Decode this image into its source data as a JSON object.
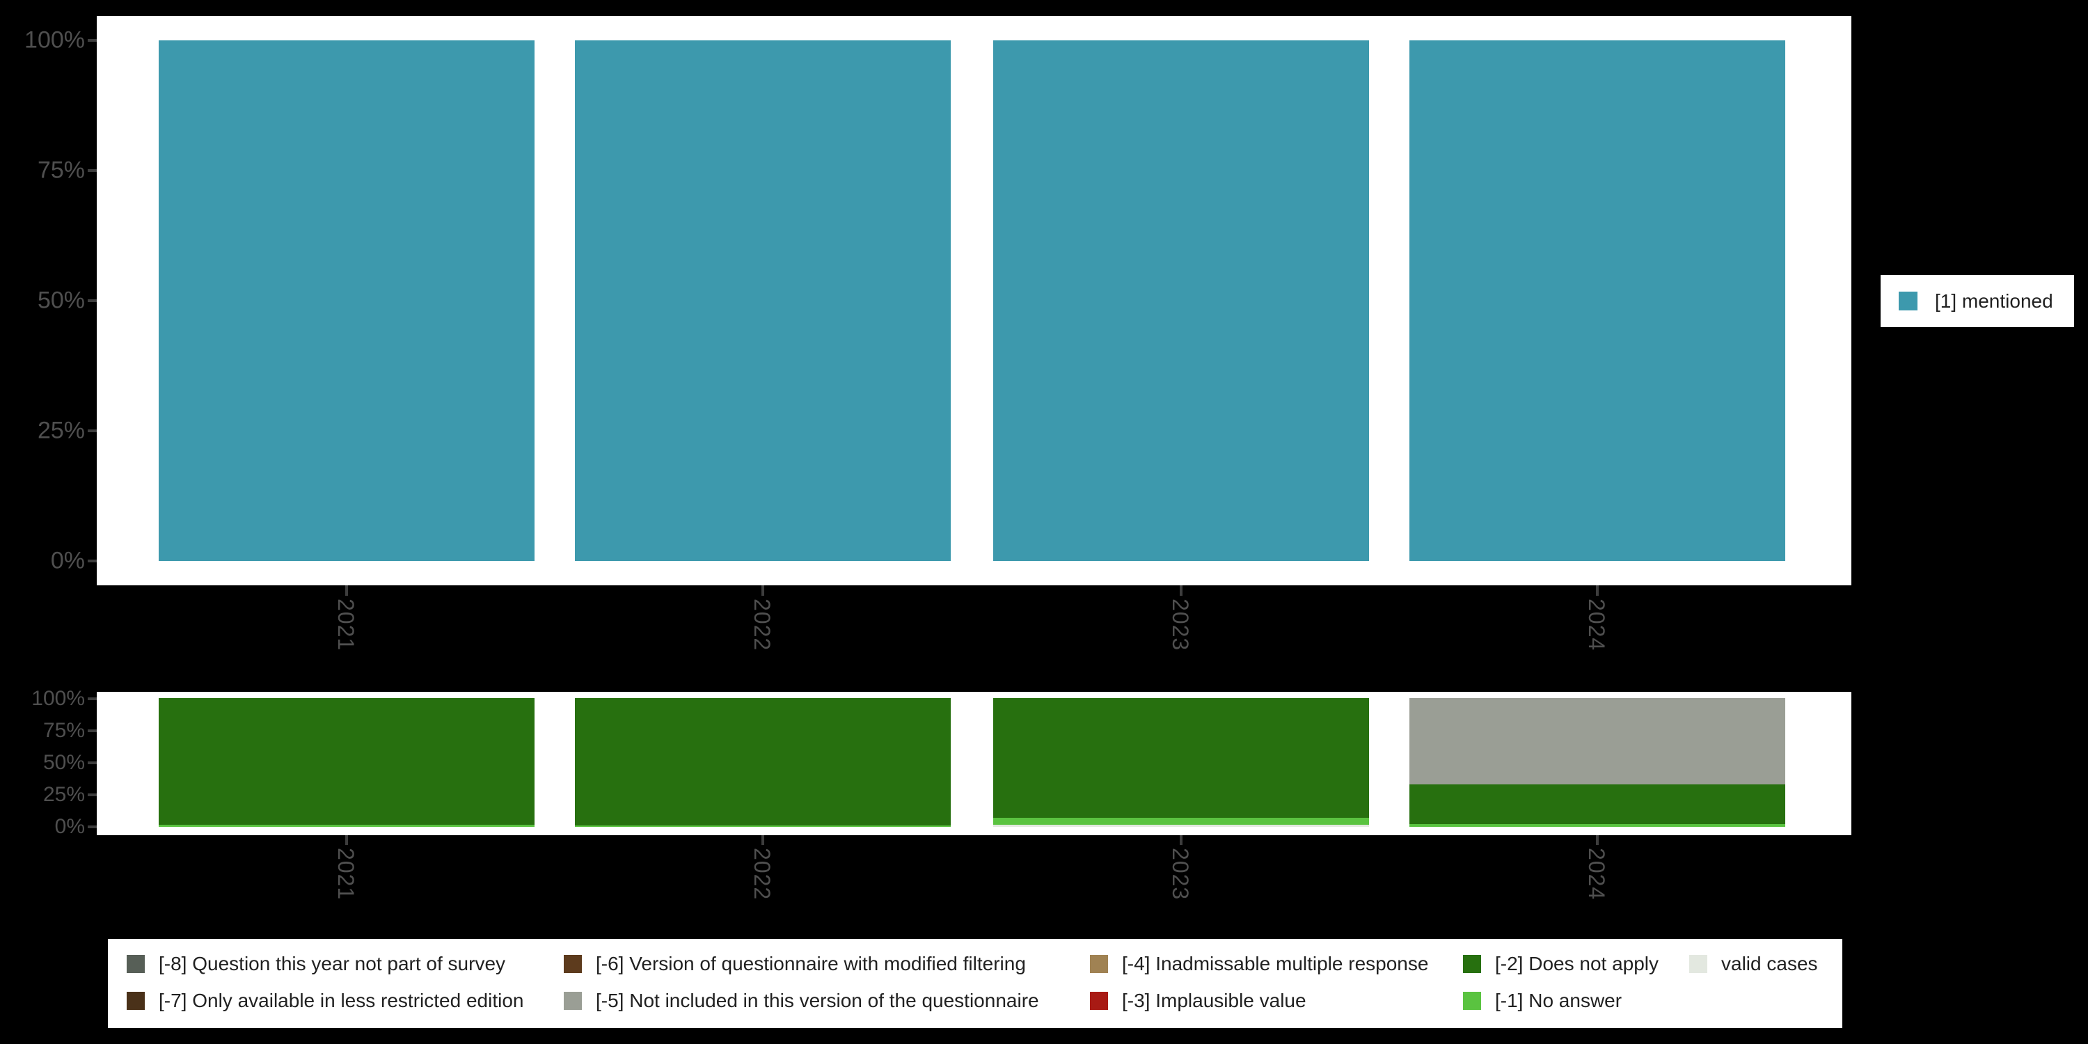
{
  "colors": {
    "background": "#000000",
    "panel": "#ffffff",
    "axis_text": "#4f4f4f",
    "tick_mark": "#3d3d3d",
    "legend_text": "#212121",
    "categories": {
      "mentioned": "#3d99ad",
      "m8": "#575f57",
      "m7": "#4a3119",
      "m6": "#5d3b1d",
      "m5": "#9a9e95",
      "m4": "#a08253",
      "m3": "#a81a14",
      "m2": "#27700f",
      "m1": "#5ac340",
      "valid": "#e3e8e0"
    }
  },
  "chart_data": [
    {
      "id": "valid-responses",
      "type": "bar",
      "stacked": true,
      "orientation": "vertical",
      "categories": [
        "2021",
        "2022",
        "2023",
        "2024"
      ],
      "series": [
        {
          "name": "[1] mentioned",
          "color_key": "mentioned",
          "values": [
            100,
            100,
            100,
            100
          ]
        }
      ],
      "ylim": [
        0,
        100
      ],
      "y_tick_labels": [
        "100%",
        "75%",
        "50%",
        "25%",
        "0%"
      ],
      "grid": false,
      "legend_position": "right"
    },
    {
      "id": "missing-values",
      "type": "bar",
      "stacked": true,
      "orientation": "vertical",
      "stack_order": "top_to_bottom",
      "categories": [
        "2021",
        "2022",
        "2023",
        "2024"
      ],
      "series": [
        {
          "name": "[-5] Not included in this version of the questionnaire",
          "color_key": "m5",
          "values": [
            0,
            0,
            0,
            67
          ]
        },
        {
          "name": "[-2] Does not apply",
          "color_key": "m2",
          "values": [
            98.5,
            99,
            93,
            31
          ]
        },
        {
          "name": "[-1] No answer",
          "color_key": "m1",
          "values": [
            1.5,
            1,
            5.5,
            2
          ]
        },
        {
          "name": "valid cases",
          "color_key": "valid",
          "values": [
            0,
            0,
            1.5,
            0
          ]
        }
      ],
      "ylim": [
        0,
        100
      ],
      "y_tick_labels": [
        "100%",
        "75%",
        "50%",
        "25%",
        "0%"
      ],
      "grid": false,
      "legend_position": "bottom"
    }
  ],
  "right_legend": {
    "items": [
      {
        "label": "[1] mentioned",
        "color_key": "mentioned"
      }
    ]
  },
  "bottom_legend": {
    "columns": [
      {
        "items": [
          {
            "label": "[-8] Question this year not part of survey",
            "color_key": "m8"
          },
          {
            "label": "[-7] Only available in less restricted edition",
            "color_key": "m7"
          }
        ]
      },
      {
        "items": [
          {
            "label": "[-6] Version of questionnaire with modified filtering",
            "color_key": "m6"
          },
          {
            "label": "[-5] Not included in this version of the questionnaire",
            "color_key": "m5"
          }
        ]
      },
      {
        "items": [
          {
            "label": "[-4] Inadmissable multiple response",
            "color_key": "m4"
          },
          {
            "label": "[-3] Implausible value",
            "color_key": "m3"
          }
        ]
      },
      {
        "items": [
          {
            "label": "[-2] Does not apply",
            "color_key": "m2"
          },
          {
            "label": "[-1] No answer",
            "color_key": "m1"
          }
        ]
      },
      {
        "items": [
          {
            "label": "valid cases",
            "color_key": "valid"
          }
        ]
      }
    ]
  }
}
